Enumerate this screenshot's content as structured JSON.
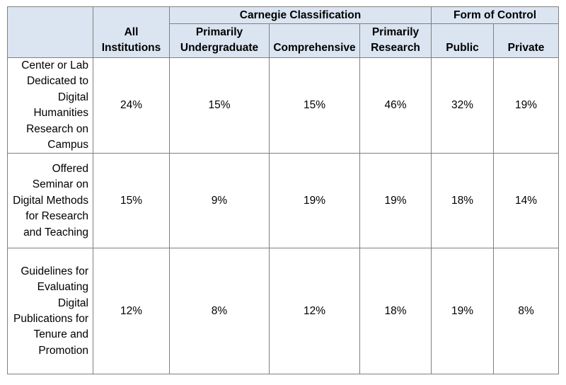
{
  "table": {
    "group_headers": {
      "carnegie": "Carnegie Classification",
      "control": "Form of Control"
    },
    "columns": {
      "all_institutions": "All Institutions",
      "primarily_undergraduate": "Primarily Undergraduate",
      "comprehensive": "Comprehensive",
      "primarily_research": "Primarily Research",
      "public": "Public",
      "private": "Private"
    },
    "rows": [
      {
        "label": "Center or Lab Dedicated to Digital Humanities Research on Campus",
        "values": [
          "24%",
          "15%",
          "15%",
          "46%",
          "32%",
          "19%"
        ]
      },
      {
        "label": "Offered Seminar on Digital Methods for Research and Teaching",
        "values": [
          "15%",
          "9%",
          "19%",
          "19%",
          "18%",
          "14%"
        ]
      },
      {
        "label": "Guidelines for Evaluating Digital Publications for Tenure and Promotion",
        "values": [
          "12%",
          "8%",
          "12%",
          "18%",
          "19%",
          "8%"
        ]
      }
    ]
  }
}
